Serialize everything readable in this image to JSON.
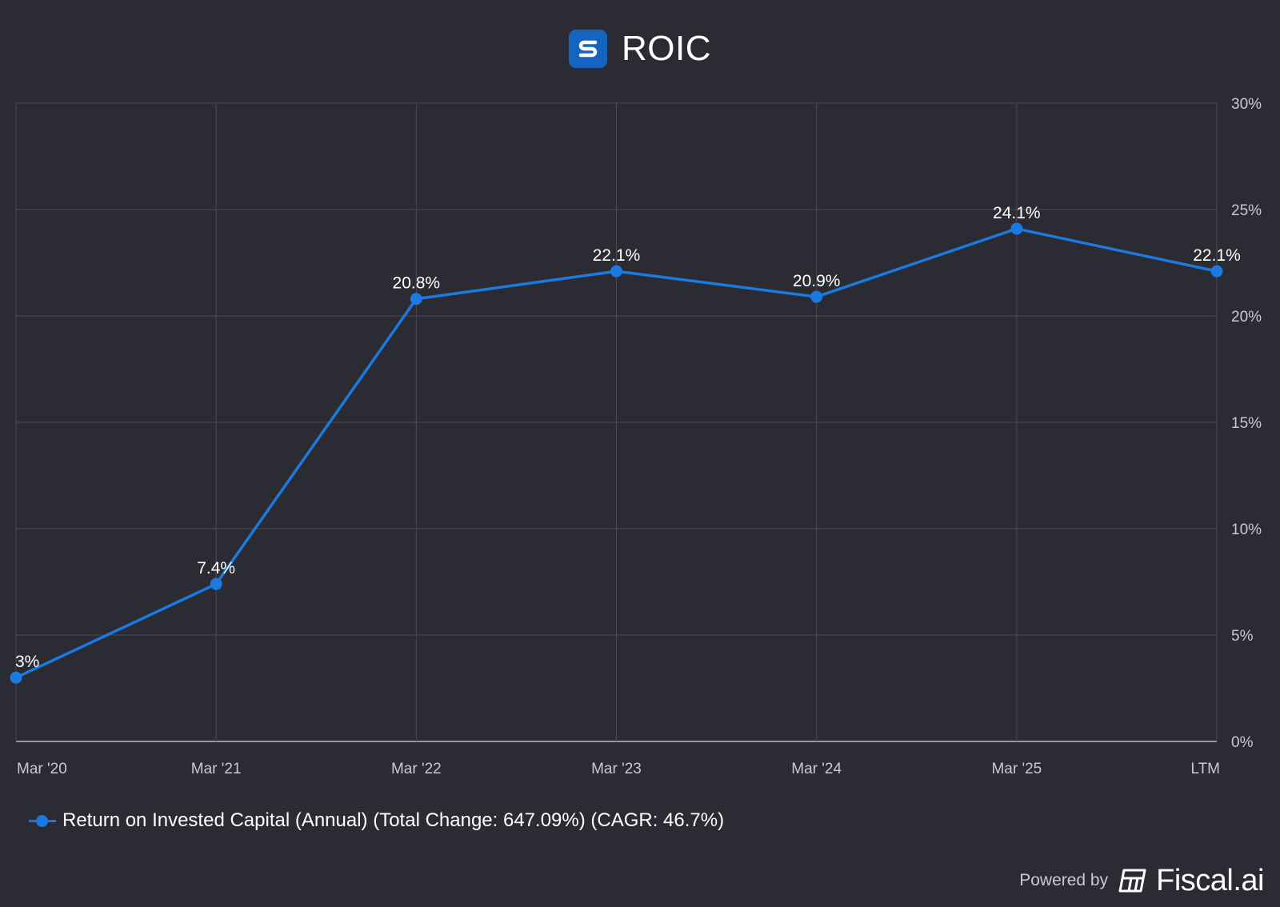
{
  "header": {
    "title": "ROIC",
    "logo_letter": "S",
    "logo_color": "#1565c0"
  },
  "chart_data": {
    "type": "line",
    "title": "ROIC",
    "categories": [
      "Mar '20",
      "Mar '21",
      "Mar '22",
      "Mar '23",
      "Mar '24",
      "Mar '25",
      "LTM"
    ],
    "series": [
      {
        "name": "Return on Invested Capital (Annual) (Total Change: 647.09%) (CAGR: 46.7%)",
        "values": [
          3.0,
          7.4,
          20.8,
          22.1,
          20.9,
          24.1,
          22.1
        ],
        "labels": [
          "3%",
          "7.4%",
          "20.8%",
          "22.1%",
          "20.9%",
          "24.1%",
          "22.1%"
        ],
        "color": "#1a7ae0"
      }
    ],
    "ylim": [
      0,
      30
    ],
    "yticks": [
      0,
      5,
      10,
      15,
      20,
      25,
      30
    ],
    "ytick_labels": [
      "0%",
      "5%",
      "10%",
      "15%",
      "20%",
      "25%",
      "30%"
    ],
    "y_axis_side": "right",
    "grid": true,
    "legend_position": "bottom-left",
    "xlabel": "",
    "ylabel": ""
  },
  "legend": {
    "label": "Return on Invested Capital (Annual) (Total Change: 647.09%) (CAGR: 46.7%)"
  },
  "footer": {
    "powered_by": "Powered by",
    "brand": "Fiscal.ai"
  },
  "colors": {
    "background": "#2a2b33",
    "grid": "#4a4b55",
    "axis": "#c9cad1",
    "series": "#1a7ae0"
  }
}
